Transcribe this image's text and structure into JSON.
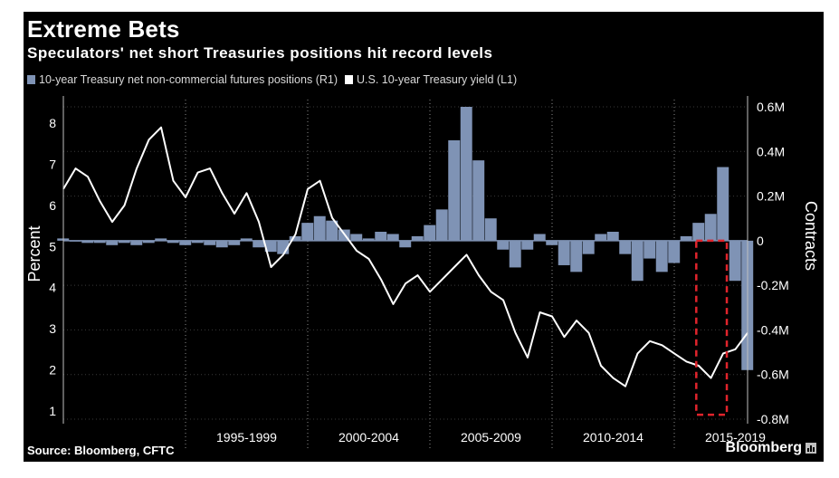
{
  "header": {
    "title": "Extreme Bets",
    "subtitle": "Speculators' net short Treasuries positions hit record levels"
  },
  "legend": [
    {
      "label": "10-year Treasury net non-commercial futures positions (R1)",
      "color": "#7f93b5"
    },
    {
      "label": "U.S. 10-year Treasury yield (L1)",
      "color": "#ffffff"
    }
  ],
  "footer": {
    "source": "Source: Bloomberg, CFTC",
    "brand": "Bloomberg"
  },
  "colors": {
    "background": "#000000",
    "bars": "#7f93b5",
    "line": "#ffffff",
    "highlight_box": "#e0242c",
    "grid": "#8c8c8c"
  },
  "chart_data": {
    "type": "bar+line",
    "title": "Extreme Bets",
    "subtitle": "Speculators' net short Treasuries positions hit record levels",
    "x_range": [
      1990.0,
      2018.0
    ],
    "x_category_labels": [
      "1995-1999",
      "2000-2004",
      "2005-2009",
      "2010-2014",
      "2015-2019"
    ],
    "x_category_starts": [
      1995,
      2000,
      2005,
      2010,
      2015
    ],
    "left_axis": {
      "label": "Percent",
      "range": [
        0.8,
        8.4
      ],
      "ticks": [
        1,
        2,
        3,
        4,
        5,
        6,
        7,
        8
      ]
    },
    "right_axis": {
      "label": "Contracts",
      "range": [
        -0.8,
        0.6
      ],
      "ticks": [
        -0.8,
        -0.6,
        -0.4,
        -0.2,
        0,
        0.2,
        0.4,
        0.6
      ],
      "tick_labels": [
        "-0.8M",
        "-0.6M",
        "-0.4M",
        "-0.2M",
        "0",
        "0.2M",
        "0.4M",
        "0.6M"
      ]
    },
    "series": [
      {
        "name": "10-year Treasury net non-commercial futures positions (R1)",
        "axis": "right",
        "kind": "bar",
        "unit": "million contracts",
        "x": [
          1990.0,
          1990.5,
          1991.0,
          1991.5,
          1992.0,
          1992.5,
          1993.0,
          1993.5,
          1994.0,
          1994.5,
          1995.0,
          1995.5,
          1996.0,
          1996.5,
          1997.0,
          1997.5,
          1998.0,
          1998.5,
          1999.0,
          1999.5,
          2000.0,
          2000.5,
          2001.0,
          2001.5,
          2002.0,
          2002.5,
          2003.0,
          2003.5,
          2004.0,
          2004.5,
          2005.0,
          2005.5,
          2006.0,
          2006.5,
          2007.0,
          2007.5,
          2008.0,
          2008.5,
          2009.0,
          2009.5,
          2010.0,
          2010.5,
          2011.0,
          2011.5,
          2012.0,
          2012.5,
          2013.0,
          2013.5,
          2014.0,
          2014.5,
          2015.0,
          2015.5,
          2016.0,
          2016.5,
          2017.0,
          2017.5,
          2018.0
        ],
        "values": [
          0.01,
          0.0,
          -0.01,
          -0.01,
          -0.02,
          -0.01,
          -0.02,
          -0.01,
          0.01,
          -0.01,
          -0.02,
          -0.01,
          -0.02,
          -0.03,
          -0.02,
          0.01,
          -0.03,
          -0.05,
          -0.06,
          0.02,
          0.08,
          0.11,
          0.09,
          0.05,
          0.03,
          0.01,
          0.04,
          0.03,
          -0.03,
          0.02,
          0.07,
          0.14,
          0.45,
          0.6,
          0.36,
          0.1,
          -0.04,
          -0.12,
          -0.04,
          0.03,
          -0.02,
          -0.11,
          -0.14,
          -0.06,
          0.03,
          0.04,
          -0.06,
          -0.18,
          -0.08,
          -0.14,
          -0.1,
          0.02,
          0.08,
          0.12,
          0.33,
          -0.18,
          -0.58
        ]
      },
      {
        "name": "U.S. 10-year Treasury yield (L1)",
        "axis": "left",
        "kind": "line",
        "unit": "percent",
        "x": [
          1990.0,
          1990.5,
          1991.0,
          1991.5,
          1992.0,
          1992.5,
          1993.0,
          1993.5,
          1994.0,
          1994.5,
          1995.0,
          1995.5,
          1996.0,
          1996.5,
          1997.0,
          1997.5,
          1998.0,
          1998.5,
          1999.0,
          1999.5,
          2000.0,
          2000.5,
          2001.0,
          2001.5,
          2002.0,
          2002.5,
          2003.0,
          2003.5,
          2004.0,
          2004.5,
          2005.0,
          2005.5,
          2006.0,
          2006.5,
          2007.0,
          2007.5,
          2008.0,
          2008.5,
          2009.0,
          2009.5,
          2010.0,
          2010.5,
          2011.0,
          2011.5,
          2012.0,
          2012.5,
          2013.0,
          2013.5,
          2014.0,
          2014.5,
          2015.0,
          2015.5,
          2016.0,
          2016.5,
          2017.0,
          2017.5,
          2018.0
        ],
        "values": [
          6.4,
          6.9,
          6.7,
          6.1,
          5.6,
          6.0,
          6.9,
          7.6,
          7.9,
          6.6,
          6.2,
          6.8,
          6.9,
          6.3,
          5.8,
          6.3,
          5.6,
          4.5,
          4.8,
          5.3,
          6.4,
          6.6,
          5.7,
          5.3,
          4.9,
          4.7,
          4.2,
          3.6,
          4.1,
          4.3,
          3.9,
          4.2,
          4.5,
          4.8,
          4.3,
          3.9,
          3.7,
          2.9,
          2.3,
          3.4,
          3.3,
          2.8,
          3.2,
          2.9,
          2.1,
          1.8,
          1.6,
          2.4,
          2.7,
          2.6,
          2.4,
          2.2,
          2.1,
          1.8,
          2.4,
          2.5,
          2.9
        ]
      }
    ],
    "annotation": {
      "type": "dashed-box",
      "x_range": [
        2015.9,
        2017.15
      ],
      "y_right_range": [
        -0.78,
        0.0
      ],
      "color": "#e0242c"
    }
  }
}
